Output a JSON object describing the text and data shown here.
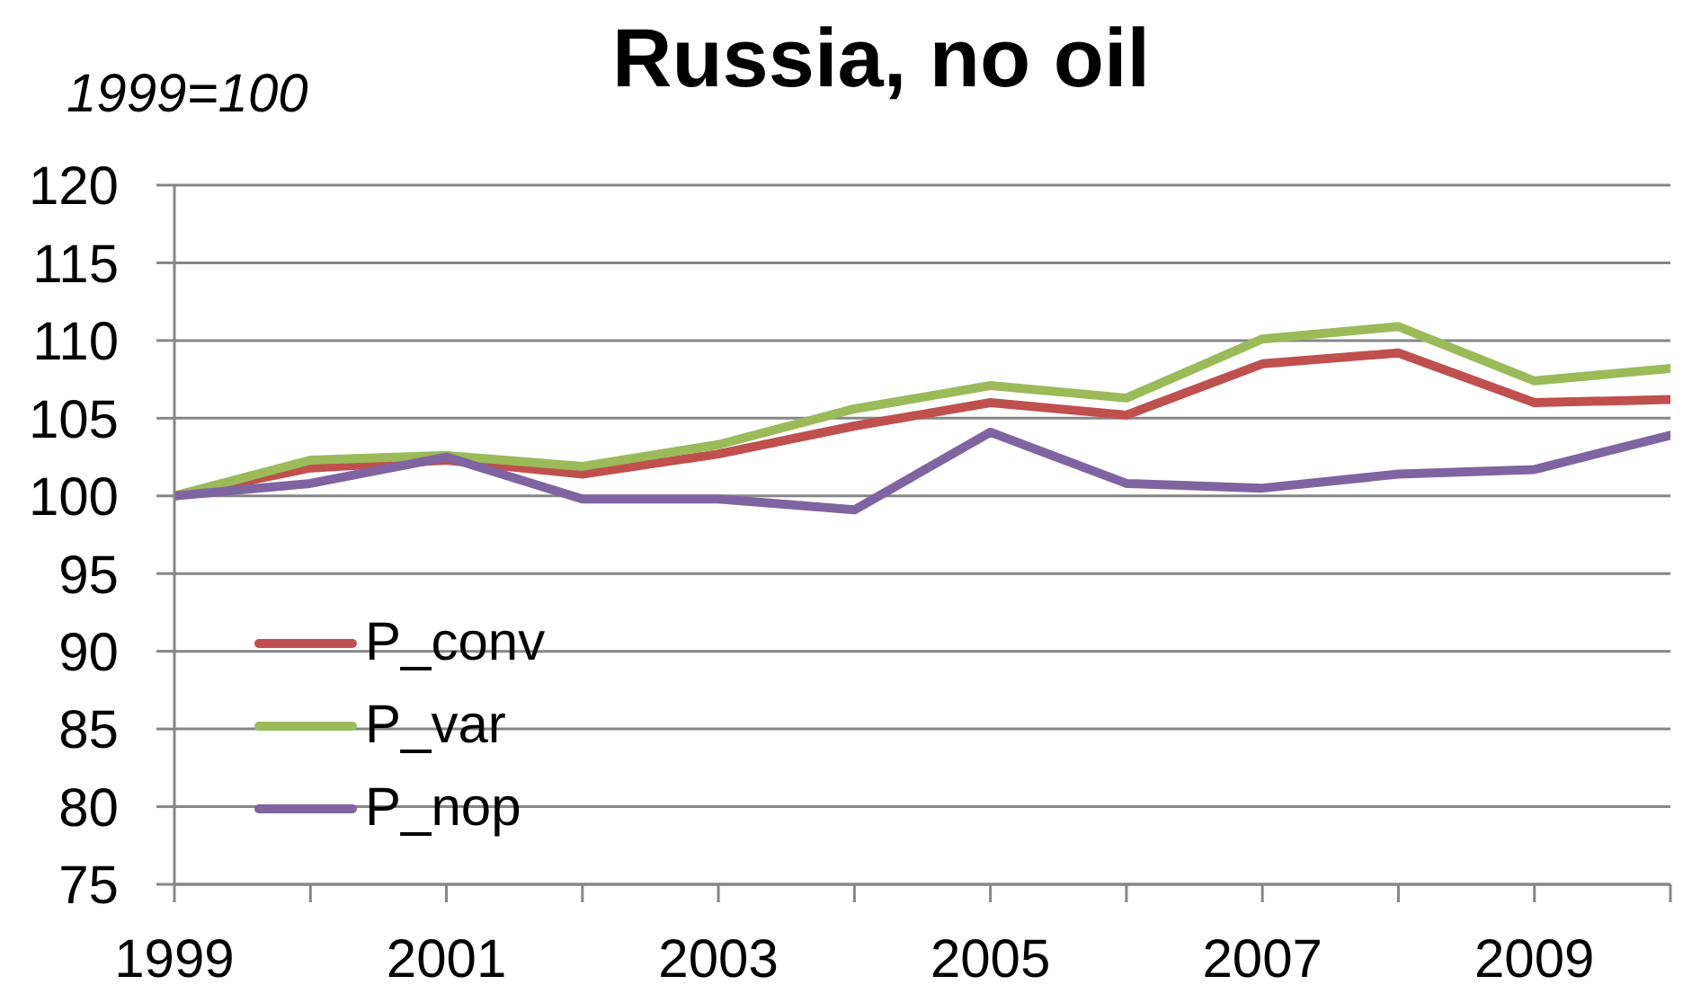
{
  "chart_data": {
    "type": "line",
    "title": "Russia, no oil",
    "ylabel": "1999=100",
    "x": [
      1999,
      2000,
      2001,
      2002,
      2003,
      2004,
      2005,
      2006,
      2007,
      2008,
      2009,
      2010
    ],
    "series": [
      {
        "name": "P_conv",
        "color": "#c0504d",
        "values": [
          100,
          101.8,
          102.3,
          101.4,
          102.7,
          104.5,
          106.0,
          105.2,
          108.5,
          109.2,
          106.0,
          106.2
        ]
      },
      {
        "name": "P_var",
        "color": "#9bbb59",
        "values": [
          100,
          102.3,
          102.6,
          101.9,
          103.3,
          105.6,
          107.1,
          106.3,
          110.1,
          110.9,
          107.4,
          108.2
        ]
      },
      {
        "name": "P_nop",
        "color": "#8064a2",
        "values": [
          100,
          100.8,
          102.5,
          99.8,
          99.8,
          99.1,
          104.1,
          100.8,
          100.5,
          101.4,
          101.7,
          103.9
        ]
      }
    ],
    "xlim": [
      1999,
      2010
    ],
    "xticks": [
      1999,
      {
        "value": 2000,
        "label": null
      },
      2001,
      {
        "value": 2002,
        "label": null
      },
      2003,
      {
        "value": 2004,
        "label": null
      },
      2005,
      {
        "value": 2006,
        "label": null
      },
      2007,
      {
        "value": 2008,
        "label": null
      },
      2009,
      {
        "value": 2010,
        "label": null
      }
    ],
    "ylim": [
      75,
      120
    ],
    "yticks": [
      75,
      80,
      85,
      90,
      95,
      100,
      105,
      110,
      115,
      120
    ],
    "grid": "y",
    "legend": "bottom left",
    "marker": "none",
    "line_style": "solid"
  }
}
